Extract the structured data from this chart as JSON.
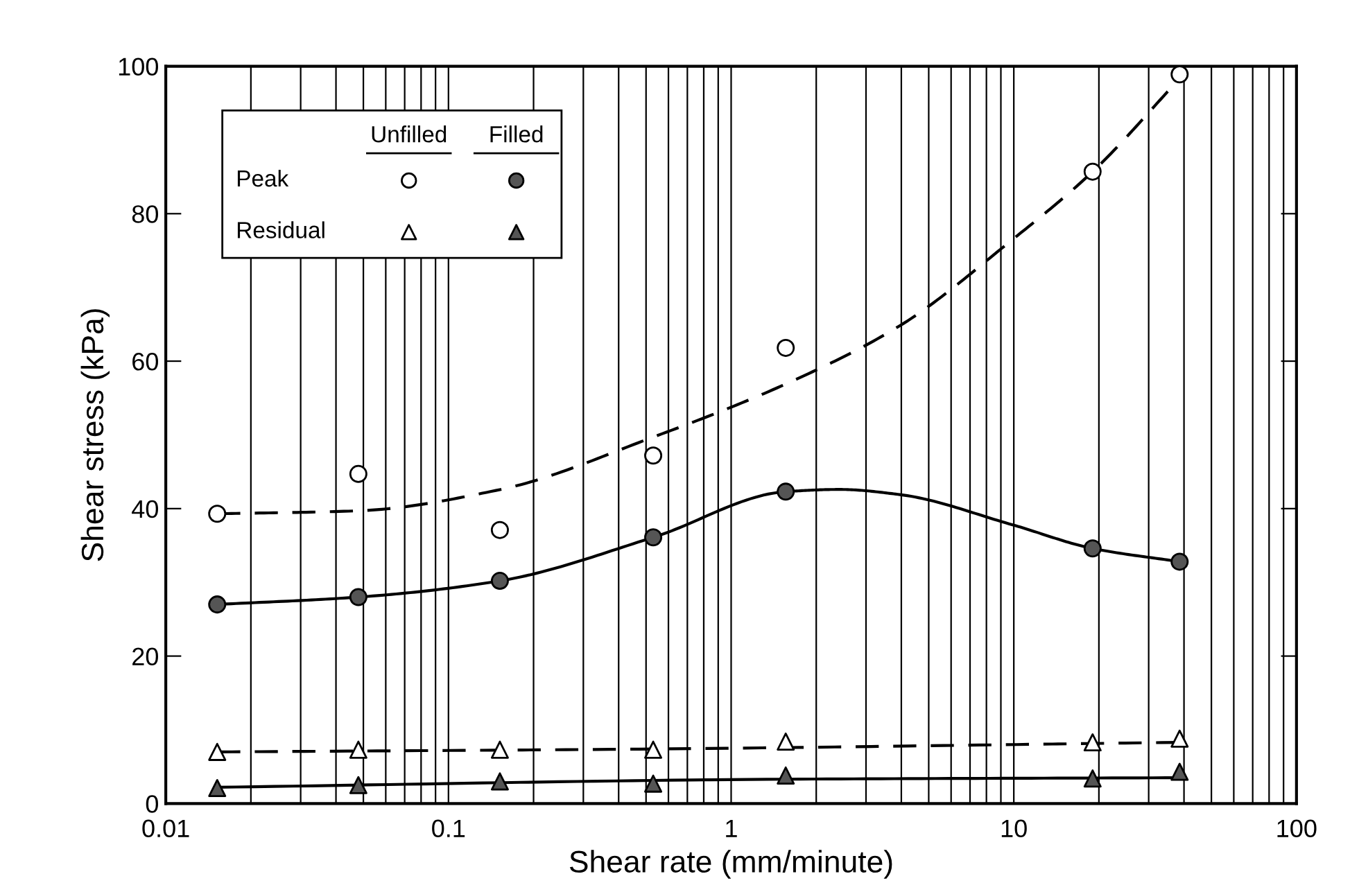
{
  "chart_data": {
    "type": "scatter",
    "xlabel": "Shear rate (mm/minute)",
    "ylabel": "Shear stress (kPa)",
    "log": "x",
    "xlim": [
      0.01,
      100
    ],
    "xticks": [
      0.01,
      0.1,
      1,
      10,
      100
    ],
    "ylim": [
      0,
      100
    ],
    "yticks": [
      0,
      20,
      40,
      60,
      80,
      100
    ],
    "grid": "x",
    "annotations": [
      "Unfilled",
      "Filled",
      "Peak",
      "Residual"
    ],
    "series": [
      {
        "marker": "circle",
        "color": "#ffffff",
        "x": [
          0.0152,
          0.048,
          0.152,
          0.53,
          1.56,
          19,
          38.6
        ],
        "values": [
          39.3,
          44.7,
          37.1,
          47.2,
          61.8,
          85.7,
          98.9
        ]
      },
      {
        "marker": "circle",
        "color": "#555555",
        "x": [
          0.0152,
          0.048,
          0.152,
          0.53,
          1.56,
          19,
          38.6
        ],
        "values": [
          27.0,
          28.0,
          30.2,
          36.1,
          42.3,
          34.6,
          32.8
        ]
      },
      {
        "marker": "triangle",
        "color": "#ffffff",
        "x": [
          0.0152,
          0.048,
          0.152,
          0.53,
          1.56,
          19,
          38.6
        ],
        "values": [
          7.0,
          7.3,
          7.3,
          7.3,
          8.4,
          8.3,
          8.8
        ]
      },
      {
        "marker": "triangle",
        "color": "#555555",
        "x": [
          0.0152,
          0.048,
          0.152,
          0.53,
          1.56,
          19,
          38.6
        ],
        "values": [
          2.1,
          2.5,
          3.0,
          2.7,
          3.8,
          3.4,
          4.3
        ]
      },
      {
        "type": "line",
        "line_style": "dashed",
        "color": "#000000",
        "x": [
          0.0152,
          0.0478,
          0.153,
          0.53,
          1.56,
          3.95,
          9.9,
          19,
          39.4
        ],
        "values": [
          39.3,
          39.7,
          42.6,
          49.7,
          56.9,
          64.8,
          76.5,
          85.7,
          98.7
        ]
      },
      {
        "type": "line",
        "line_style": "solid",
        "color": "#000000",
        "x": [
          0.0152,
          0.048,
          0.152,
          0.53,
          1.56,
          2.42,
          3.95,
          9.9,
          19,
          38.6
        ],
        "values": [
          27.0,
          28.0,
          30.2,
          36.1,
          42.3,
          42.6,
          41.9,
          37.8,
          34.6,
          32.8
        ]
      },
      {
        "type": "line",
        "line_style": "dashed",
        "color": "#000000",
        "x": [
          0.0152,
          0.53,
          38.6
        ],
        "values": [
          7.0,
          7.4,
          8.3
        ]
      },
      {
        "type": "line",
        "line_style": "solid",
        "color": "#000000",
        "x": [
          0.0152,
          1.56,
          38.6
        ],
        "values": [
          2.2,
          3.3,
          3.5
        ]
      }
    ]
  }
}
